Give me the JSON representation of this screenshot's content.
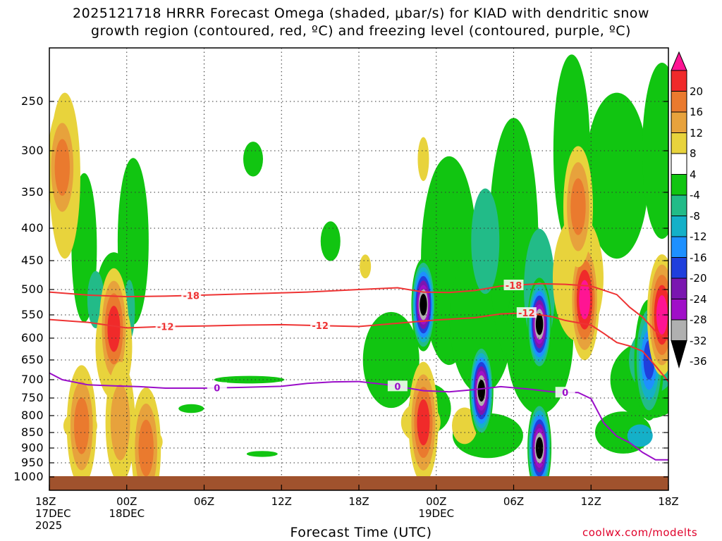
{
  "title_line1": "2025121718 HRRR Forecast Omega (shaded, μbar/s) for KIAD with dendritic snow",
  "title_line2": "growth region (contoured, red, ºC) and freezing level (contoured, purple, ºC)",
  "xlabel": "Forecast Time (UTC)",
  "credit": "coolwx.com/modelts",
  "contour_labels": {
    "minus18": "-18",
    "minus12": "-12",
    "zero": "0"
  },
  "colors": {
    "dgz_contour": "#ee3333",
    "freezing_contour": "#9a0ec8",
    "ground": "#a0522d",
    "credit": "#e0002a"
  },
  "chart_data": {
    "type": "heatmap",
    "y_axis": {
      "label": "",
      "scale": "pressure (inverted)",
      "range": [
        1000,
        200
      ],
      "ticks": [
        "250",
        "300",
        "350",
        "400",
        "450",
        "500",
        "550",
        "600",
        "650",
        "700",
        "750",
        "800",
        "850",
        "900",
        "950",
        "1000"
      ]
    },
    "x_axis": {
      "label": "Forecast Time (UTC)",
      "range_hours": [
        0,
        48
      ],
      "ticks": [
        {
          "h": 0,
          "lines": [
            "18Z",
            "17DEC",
            "2025"
          ]
        },
        {
          "h": 6,
          "lines": [
            "00Z",
            "18DEC"
          ]
        },
        {
          "h": 12,
          "lines": [
            "06Z"
          ]
        },
        {
          "h": 18,
          "lines": [
            "12Z"
          ]
        },
        {
          "h": 24,
          "lines": [
            "18Z"
          ]
        },
        {
          "h": 30,
          "lines": [
            "00Z",
            "19DEC"
          ]
        },
        {
          "h": 36,
          "lines": [
            "06Z"
          ]
        },
        {
          "h": 42,
          "lines": [
            "12Z"
          ]
        },
        {
          "h": 48,
          "lines": [
            "18Z"
          ]
        }
      ]
    },
    "grid": true,
    "colorbar": {
      "labels": [
        "20",
        "16",
        "12",
        "8",
        "4",
        "-4",
        "-8",
        "-12",
        "-16",
        "-20",
        "-24",
        "-28",
        "-32",
        "-36"
      ],
      "bins": [
        {
          "range": [
            20,
            24
          ],
          "color": "#ff1493"
        },
        {
          "range": [
            16,
            20
          ],
          "color": "#f02a2a"
        },
        {
          "range": [
            12,
            16
          ],
          "color": "#ea7a2e"
        },
        {
          "range": [
            8,
            12
          ],
          "color": "#e7a23c"
        },
        {
          "range": [
            4,
            8
          ],
          "color": "#e8d33c"
        },
        {
          "range": [
            -4,
            4
          ],
          "color": "#ffffff"
        },
        {
          "range": [
            -8,
            -4
          ],
          "color": "#11c511"
        },
        {
          "range": [
            -12,
            -8
          ],
          "color": "#22bb88"
        },
        {
          "range": [
            -16,
            -12
          ],
          "color": "#14b0c8"
        },
        {
          "range": [
            -20,
            -16
          ],
          "color": "#1e90ff"
        },
        {
          "range": [
            -24,
            -20
          ],
          "color": "#1f3fdc"
        },
        {
          "range": [
            -28,
            -24
          ],
          "color": "#7a16b0"
        },
        {
          "range": [
            -32,
            -28
          ],
          "color": "#a00fc8"
        },
        {
          "range": [
            -36,
            -32
          ],
          "color": "#b0b0b0"
        },
        {
          "range": [
            -40,
            -36
          ],
          "color": "#000000"
        }
      ]
    },
    "contours": [
      {
        "label": "-18",
        "color": "#ee3333",
        "points": [
          [
            0,
            505
          ],
          [
            3,
            511
          ],
          [
            6,
            514
          ],
          [
            9,
            513
          ],
          [
            12,
            511
          ],
          [
            16,
            508
          ],
          [
            20,
            505
          ],
          [
            24,
            500
          ],
          [
            27,
            497
          ],
          [
            29,
            505
          ],
          [
            31,
            506
          ],
          [
            33,
            502
          ],
          [
            35,
            494
          ],
          [
            38,
            490
          ],
          [
            40,
            491
          ],
          [
            42,
            494
          ],
          [
            44,
            510
          ],
          [
            45,
            535
          ],
          [
            46,
            555
          ],
          [
            47,
            585
          ],
          [
            48,
            605
          ]
        ]
      },
      {
        "label": "-12",
        "color": "#ee3333",
        "points": [
          [
            0,
            560
          ],
          [
            3,
            566
          ],
          [
            6,
            578
          ],
          [
            9,
            575
          ],
          [
            12,
            574
          ],
          [
            15,
            572
          ],
          [
            18,
            571
          ],
          [
            21,
            573
          ],
          [
            24,
            575
          ],
          [
            27,
            568
          ],
          [
            30,
            561
          ],
          [
            33,
            556
          ],
          [
            35,
            548
          ],
          [
            37,
            546
          ],
          [
            39,
            554
          ],
          [
            40,
            562
          ],
          [
            42,
            572
          ],
          [
            43,
            590
          ],
          [
            44,
            610
          ],
          [
            45,
            618
          ],
          [
            46,
            630
          ],
          [
            47,
            665
          ],
          [
            48,
            705
          ]
        ]
      },
      {
        "label": "0",
        "color": "#9a0ec8",
        "points": [
          [
            0,
            683
          ],
          [
            1,
            700
          ],
          [
            3,
            714
          ],
          [
            5,
            717
          ],
          [
            7,
            719
          ],
          [
            9,
            723
          ],
          [
            12,
            723
          ],
          [
            15,
            721
          ],
          [
            18,
            718
          ],
          [
            20,
            710
          ],
          [
            22,
            706
          ],
          [
            24,
            705
          ],
          [
            26,
            713
          ],
          [
            27,
            718
          ],
          [
            29,
            730
          ],
          [
            31,
            733
          ],
          [
            33,
            727
          ],
          [
            35,
            719
          ],
          [
            37,
            725
          ],
          [
            39,
            733
          ],
          [
            40,
            735
          ],
          [
            41,
            735
          ],
          [
            42,
            752
          ],
          [
            43,
            822
          ],
          [
            44,
            862
          ],
          [
            45,
            883
          ],
          [
            46,
            915
          ],
          [
            47,
            940
          ],
          [
            48,
            940
          ]
        ]
      }
    ],
    "regions": [
      {
        "note": "omega blob",
        "h": 1.0,
        "p": 320,
        "value": 12
      },
      {
        "note": "omega blob",
        "h": 5.0,
        "p": 580,
        "value": 16
      },
      {
        "note": "omega blob",
        "h": 5.5,
        "p": 820,
        "value": 10
      },
      {
        "note": "omega blob",
        "h": 2.5,
        "p": 830,
        "value": 12
      },
      {
        "note": "omega blob",
        "h": 7.5,
        "p": 900,
        "value": 12
      },
      {
        "note": "omega blob",
        "h": 29.0,
        "p": 530,
        "value": -36
      },
      {
        "note": "omega blob",
        "h": 29.0,
        "p": 820,
        "value": 16
      },
      {
        "note": "omega blob",
        "h": 33.5,
        "p": 730,
        "value": -36
      },
      {
        "note": "omega blob",
        "h": 38.0,
        "p": 570,
        "value": -36
      },
      {
        "note": "omega blob",
        "h": 38.0,
        "p": 900,
        "value": -36
      },
      {
        "note": "omega blob",
        "h": 41.5,
        "p": 520,
        "value": 20
      },
      {
        "note": "omega blob",
        "h": 41.0,
        "p": 370,
        "value": 12
      },
      {
        "note": "omega blob",
        "h": 46.5,
        "p": 650,
        "value": -20
      },
      {
        "note": "omega blob",
        "h": 47.5,
        "p": 550,
        "value": 20
      }
    ]
  }
}
